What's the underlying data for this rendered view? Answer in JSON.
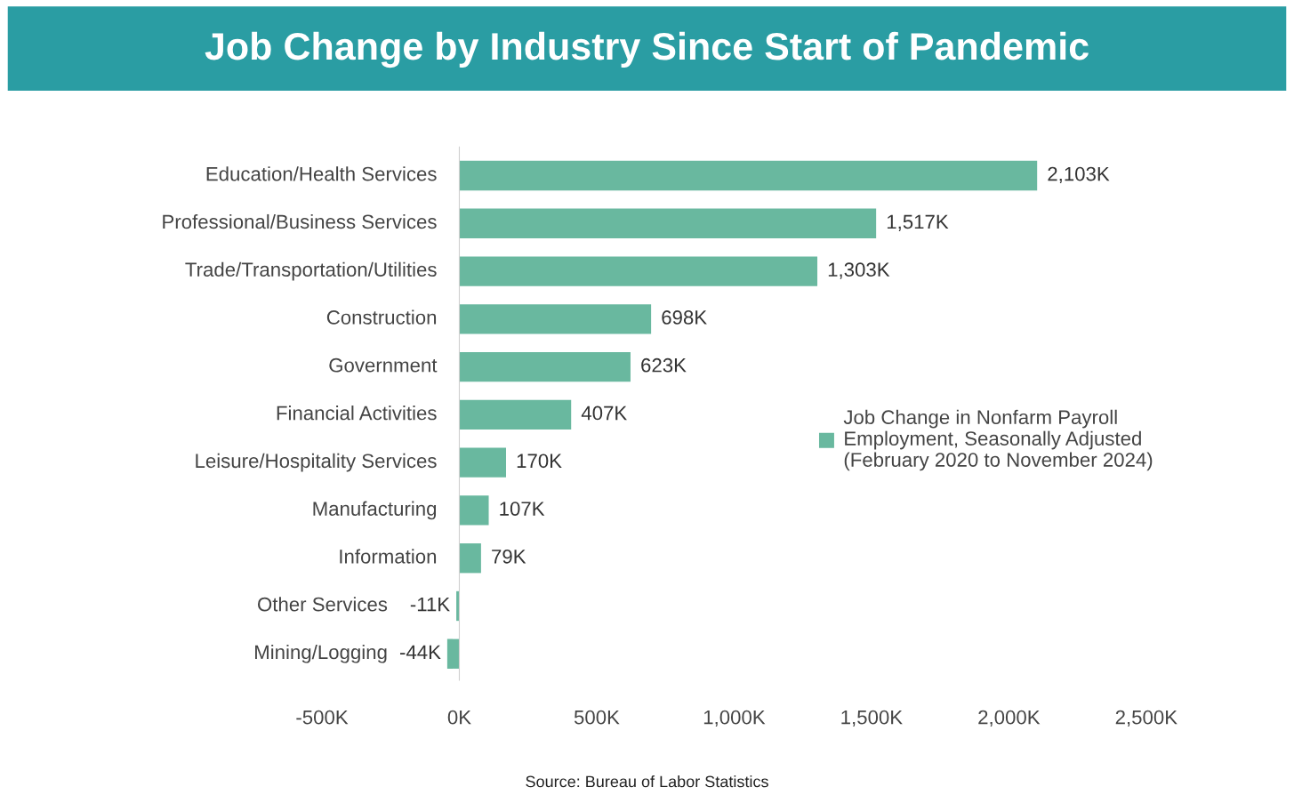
{
  "chart_data": {
    "type": "bar",
    "orientation": "horizontal",
    "title": "Job Change by Industry Since Start of Pandemic",
    "categories": [
      "Education/Health Services",
      "Professional/Business Services",
      "Trade/Transportation/Utilities",
      "Construction",
      "Government",
      "Financial Activities",
      "Leisure/Hospitality Services",
      "Manufacturing",
      "Information",
      "Other Services",
      "Mining/Logging"
    ],
    "series": [
      {
        "name": "Job Change in Nonfarm Payroll\nEmployment, Seasonally Adjusted\n(February 2020 to November 2024)",
        "color": "#69b89f",
        "values": [
          2103,
          1517,
          1303,
          698,
          623,
          407,
          170,
          107,
          79,
          -11,
          -44
        ],
        "value_labels": [
          "2,103K",
          "1,517K",
          "1,303K",
          "698K",
          "623K",
          "407K",
          "170K",
          "107K",
          "79K",
          "-11K",
          "-44K"
        ]
      }
    ],
    "xlim": [
      -500,
      2500
    ],
    "xticks": [
      {
        "value": -500,
        "label": "-500K"
      },
      {
        "value": 0,
        "label": "0K"
      },
      {
        "value": 500,
        "label": "500K"
      },
      {
        "value": 1000,
        "label": "1,000K"
      },
      {
        "value": 1500,
        "label": "1,500K"
      },
      {
        "value": 2000,
        "label": "2,000K"
      },
      {
        "value": 2500,
        "label": "2,500K"
      }
    ],
    "grid": false,
    "legend": "right",
    "annotations": [
      "Source: Bureau of Labor Statistics"
    ]
  }
}
